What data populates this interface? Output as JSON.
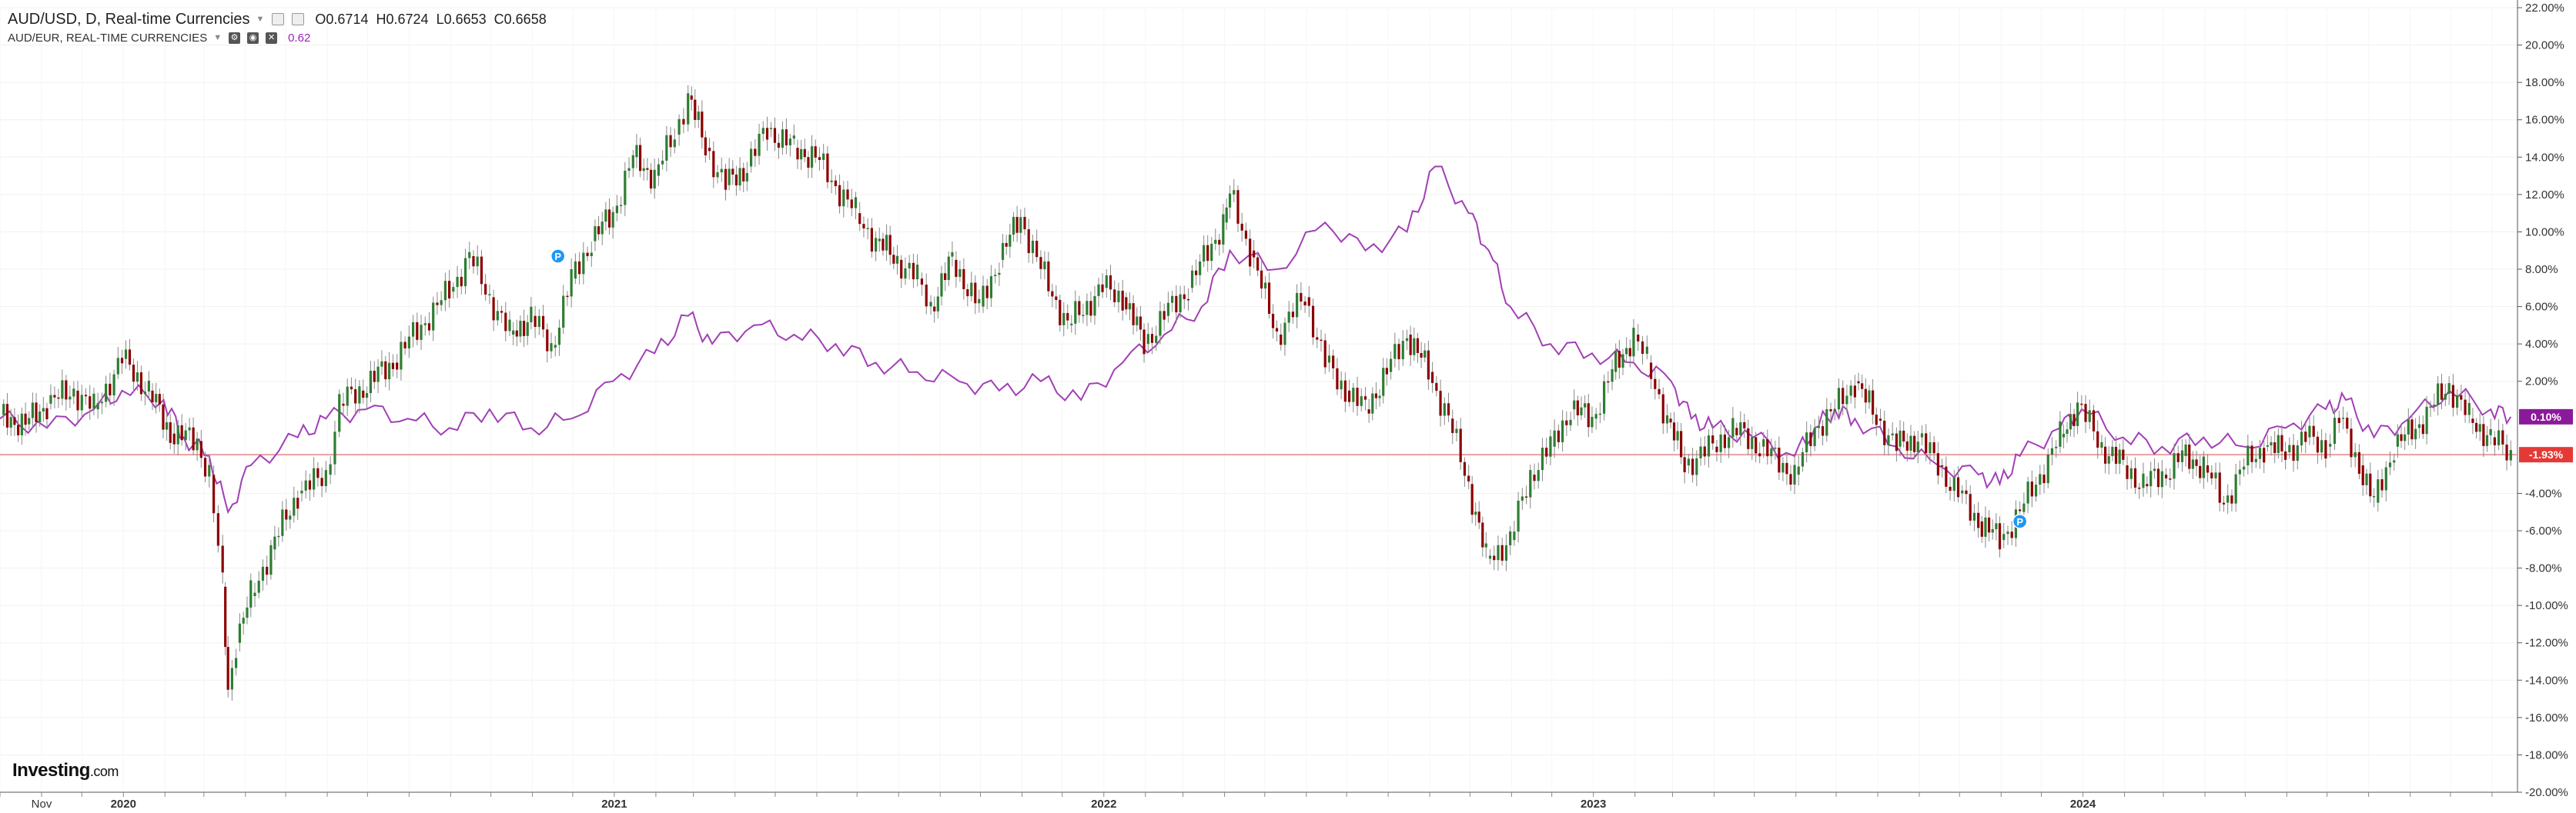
{
  "legend": {
    "title": "AUD/USD, D, Real-time Currencies",
    "open": "O0.6714",
    "high": "H0.6724",
    "low": "L0.6653",
    "close": "C0.6658",
    "comparison_label": "AUD/EUR, REAL-TIME CURRENCIES",
    "comparison_value": "0.62"
  },
  "brand": {
    "name": "Investing",
    "suffix": ".com"
  },
  "colors": {
    "up": "#2e7d32",
    "down": "#8b0000",
    "compare_line": "#a23fb5",
    "baseline": "#e8a0a0",
    "last_compare_badge": "#8b1a9a",
    "last_price_badge": "#e53935",
    "grid": "#f0f0f0"
  },
  "chart_data": {
    "type": "line",
    "x_axis": {
      "labels": [
        "Nov",
        "2020",
        "2021",
        "2022",
        "2023",
        "2024"
      ],
      "start": "2019-10-01",
      "end": "2024-11-20"
    },
    "y_axis": {
      "unit": "%",
      "min": -20,
      "max": 22,
      "ticks": [
        22,
        20,
        18,
        16,
        14,
        12,
        10,
        8,
        6,
        4,
        2,
        -4,
        -6,
        -8,
        -10,
        -12,
        -14,
        -16,
        -18,
        -20
      ],
      "tick_labels": [
        "22.00%",
        "20.00%",
        "18.00%",
        "16.00%",
        "14.00%",
        "12.00%",
        "10.00%",
        "8.00%",
        "6.00%",
        "4.00%",
        "2.00%",
        "-4.00%",
        "-6.00%",
        "-8.00%",
        "-10.00%",
        "-12.00%",
        "-14.00%",
        "-16.00%",
        "-18.00%",
        "-20.00%"
      ]
    },
    "baseline": -1.93,
    "series": [
      {
        "name": "AUD/USD",
        "style": "candlestick",
        "points": [
          [
            "2019-10-01",
            0.2
          ],
          [
            "2019-10-20",
            -0.3
          ],
          [
            "2019-11-05",
            0.8
          ],
          [
            "2019-11-25",
            1.5
          ],
          [
            "2019-12-10",
            0.5
          ],
          [
            "2019-12-31",
            3.2
          ],
          [
            "2020-01-20",
            1.5
          ],
          [
            "2020-02-05",
            -0.8
          ],
          [
            "2020-02-25",
            -1.2
          ],
          [
            "2020-03-05",
            -3.0
          ],
          [
            "2020-03-15",
            -9.0
          ],
          [
            "2020-03-19",
            -14.5
          ],
          [
            "2020-03-25",
            -12.0
          ],
          [
            "2020-04-05",
            -9.5
          ],
          [
            "2020-04-20",
            -7.0
          ],
          [
            "2020-05-10",
            -4.0
          ],
          [
            "2020-05-31",
            -3.0
          ],
          [
            "2020-06-10",
            0.8
          ],
          [
            "2020-06-25",
            1.5
          ],
          [
            "2020-07-20",
            3.0
          ],
          [
            "2020-08-10",
            5.0
          ],
          [
            "2020-08-31",
            6.8
          ],
          [
            "2020-09-15",
            8.7
          ],
          [
            "2020-09-30",
            6.5
          ],
          [
            "2020-10-15",
            4.5
          ],
          [
            "2020-10-31",
            5.5
          ],
          [
            "2020-11-15",
            3.8
          ],
          [
            "2020-11-30",
            7.5
          ],
          [
            "2020-12-15",
            9.5
          ],
          [
            "2020-12-31",
            11.0
          ],
          [
            "2021-01-15",
            14.0
          ],
          [
            "2021-01-31",
            13.0
          ],
          [
            "2021-02-15",
            15.2
          ],
          [
            "2021-02-25",
            17.3
          ],
          [
            "2021-03-10",
            14.5
          ],
          [
            "2021-03-25",
            12.5
          ],
          [
            "2021-04-10",
            13.5
          ],
          [
            "2021-04-25",
            15.5
          ],
          [
            "2021-05-15",
            14.5
          ],
          [
            "2021-05-31",
            14.0
          ],
          [
            "2021-06-15",
            12.5
          ],
          [
            "2021-06-30",
            11.0
          ],
          [
            "2021-07-15",
            9.5
          ],
          [
            "2021-07-31",
            8.5
          ],
          [
            "2021-08-15",
            7.5
          ],
          [
            "2021-08-25",
            6.0
          ],
          [
            "2021-09-10",
            8.5
          ],
          [
            "2021-09-30",
            6.0
          ],
          [
            "2021-10-15",
            8.5
          ],
          [
            "2021-10-31",
            10.8
          ],
          [
            "2021-11-15",
            8.0
          ],
          [
            "2021-12-05",
            5.0
          ],
          [
            "2021-12-31",
            7.0
          ],
          [
            "2022-01-15",
            6.5
          ],
          [
            "2022-01-31",
            4.0
          ],
          [
            "2022-02-15",
            5.5
          ],
          [
            "2022-03-05",
            7.0
          ],
          [
            "2022-03-31",
            10.5
          ],
          [
            "2022-04-05",
            12.0
          ],
          [
            "2022-04-20",
            9.0
          ],
          [
            "2022-05-10",
            4.5
          ],
          [
            "2022-05-31",
            6.5
          ],
          [
            "2022-06-15",
            3.0
          ],
          [
            "2022-06-30",
            1.5
          ],
          [
            "2022-07-15",
            0.5
          ],
          [
            "2022-07-31",
            2.5
          ],
          [
            "2022-08-15",
            4.5
          ],
          [
            "2022-08-31",
            2.5
          ],
          [
            "2022-09-15",
            0.0
          ],
          [
            "2022-09-30",
            -3.5
          ],
          [
            "2022-10-13",
            -7.5
          ],
          [
            "2022-10-31",
            -6.5
          ],
          [
            "2022-11-15",
            -3.0
          ],
          [
            "2022-11-30",
            -1.5
          ],
          [
            "2022-12-15",
            0.5
          ],
          [
            "2022-12-31",
            0.0
          ],
          [
            "2023-01-15",
            2.5
          ],
          [
            "2023-01-31",
            4.5
          ],
          [
            "2023-02-10",
            3.0
          ],
          [
            "2023-02-25",
            0.0
          ],
          [
            "2023-03-10",
            -2.5
          ],
          [
            "2023-03-31",
            -1.5
          ],
          [
            "2023-04-15",
            -0.5
          ],
          [
            "2023-05-05",
            -1.5
          ],
          [
            "2023-05-31",
            -3.0
          ],
          [
            "2023-06-15",
            -0.5
          ],
          [
            "2023-06-30",
            0.5
          ],
          [
            "2023-07-15",
            2.0
          ],
          [
            "2023-07-31",
            0.0
          ],
          [
            "2023-08-15",
            -1.5
          ],
          [
            "2023-08-31",
            -1.0
          ],
          [
            "2023-09-15",
            -2.5
          ],
          [
            "2023-09-30",
            -4.0
          ],
          [
            "2023-10-15",
            -5.5
          ],
          [
            "2023-10-31",
            -6.5
          ],
          [
            "2023-11-15",
            -5.0
          ],
          [
            "2023-11-30",
            -3.0
          ],
          [
            "2023-12-15",
            -1.0
          ],
          [
            "2023-12-28",
            0.8
          ],
          [
            "2024-01-15",
            -1.5
          ],
          [
            "2024-01-31",
            -2.5
          ],
          [
            "2024-02-15",
            -3.5
          ],
          [
            "2024-02-29",
            -3.0
          ],
          [
            "2024-03-15",
            -2.0
          ],
          [
            "2024-03-31",
            -2.5
          ],
          [
            "2024-04-15",
            -4.5
          ],
          [
            "2024-04-30",
            -2.5
          ],
          [
            "2024-05-15",
            -1.5
          ],
          [
            "2024-05-31",
            -1.8
          ],
          [
            "2024-06-15",
            -1.0
          ],
          [
            "2024-06-30",
            -1.5
          ],
          [
            "2024-07-10",
            0.0
          ],
          [
            "2024-07-25",
            -2.5
          ],
          [
            "2024-08-05",
            -4.5
          ],
          [
            "2024-08-20",
            -1.5
          ],
          [
            "2024-09-05",
            -0.5
          ],
          [
            "2024-09-30",
            1.8
          ],
          [
            "2024-10-15",
            0.0
          ],
          [
            "2024-10-31",
            -1.0
          ],
          [
            "2024-11-15",
            -1.93
          ]
        ]
      },
      {
        "name": "AUD/EUR",
        "style": "line",
        "points": [
          [
            "2019-10-01",
            0.0
          ],
          [
            "2019-11-05",
            -0.5
          ],
          [
            "2019-12-10",
            0.5
          ],
          [
            "2019-12-31",
            1.5
          ],
          [
            "2020-01-31",
            1.0
          ],
          [
            "2020-02-15",
            -1.0
          ],
          [
            "2020-03-05",
            -2.0
          ],
          [
            "2020-03-19",
            -5.0
          ],
          [
            "2020-04-05",
            -2.5
          ],
          [
            "2020-05-10",
            -1.0
          ],
          [
            "2020-05-31",
            0.0
          ],
          [
            "2020-06-30",
            0.5
          ],
          [
            "2020-07-31",
            0.0
          ],
          [
            "2020-08-31",
            -0.5
          ],
          [
            "2020-09-30",
            0.5
          ],
          [
            "2020-10-31",
            -0.5
          ],
          [
            "2020-11-30",
            0.0
          ],
          [
            "2020-12-31",
            2.0
          ],
          [
            "2021-01-31",
            3.5
          ],
          [
            "2021-02-25",
            5.5
          ],
          [
            "2021-03-15",
            4.0
          ],
          [
            "2021-04-15",
            5.0
          ],
          [
            "2021-05-15",
            4.5
          ],
          [
            "2021-06-15",
            4.0
          ],
          [
            "2021-07-15",
            3.0
          ],
          [
            "2021-08-15",
            2.5
          ],
          [
            "2021-09-15",
            2.0
          ],
          [
            "2021-10-15",
            1.5
          ],
          [
            "2021-11-15",
            2.0
          ],
          [
            "2021-12-15",
            1.0
          ],
          [
            "2022-01-15",
            3.0
          ],
          [
            "2022-02-15",
            4.5
          ],
          [
            "2022-03-15",
            6.0
          ],
          [
            "2022-04-05",
            9.0
          ],
          [
            "2022-05-10",
            8.0
          ],
          [
            "2022-06-15",
            10.5
          ],
          [
            "2022-07-15",
            9.0
          ],
          [
            "2022-08-15",
            10.0
          ],
          [
            "2022-09-05",
            13.5
          ],
          [
            "2022-09-30",
            11.0
          ],
          [
            "2022-10-15",
            9.0
          ],
          [
            "2022-10-31",
            6.0
          ],
          [
            "2022-11-30",
            4.0
          ],
          [
            "2022-12-31",
            3.5
          ],
          [
            "2023-01-31",
            3.0
          ],
          [
            "2023-02-28",
            2.0
          ],
          [
            "2023-03-15",
            0.0
          ],
          [
            "2023-03-31",
            -0.5
          ],
          [
            "2023-04-30",
            -1.0
          ],
          [
            "2023-05-31",
            -2.0
          ],
          [
            "2023-06-15",
            -0.5
          ],
          [
            "2023-06-30",
            0.5
          ],
          [
            "2023-07-15",
            0.0
          ],
          [
            "2023-08-15",
            -1.5
          ],
          [
            "2023-09-15",
            -2.5
          ],
          [
            "2023-10-15",
            -3.0
          ],
          [
            "2023-10-31",
            -3.5
          ],
          [
            "2023-11-15",
            -2.0
          ],
          [
            "2023-12-15",
            -0.5
          ],
          [
            "2023-12-31",
            0.5
          ],
          [
            "2024-01-31",
            -1.0
          ],
          [
            "2024-02-29",
            -1.5
          ],
          [
            "2024-03-31",
            -1.0
          ],
          [
            "2024-04-30",
            -1.5
          ],
          [
            "2024-05-31",
            -0.5
          ],
          [
            "2024-06-30",
            0.5
          ],
          [
            "2024-07-15",
            1.0
          ],
          [
            "2024-08-05",
            -1.0
          ],
          [
            "2024-08-31",
            0.0
          ],
          [
            "2024-09-30",
            1.5
          ],
          [
            "2024-10-31",
            0.5
          ],
          [
            "2024-11-15",
            0.1
          ]
        ]
      }
    ],
    "last_values": [
      {
        "series": "AUD/EUR",
        "label": "0.10%",
        "value": 0.1
      },
      {
        "series": "AUD/USD",
        "label": "-1.93%",
        "value": -1.93
      }
    ],
    "markers": [
      {
        "label": "P",
        "date": "2020-11-20",
        "value": 8.7
      },
      {
        "label": "P",
        "date": "2023-11-15",
        "value": -5.5
      }
    ],
    "grid": true,
    "legend_position": "top-left"
  }
}
